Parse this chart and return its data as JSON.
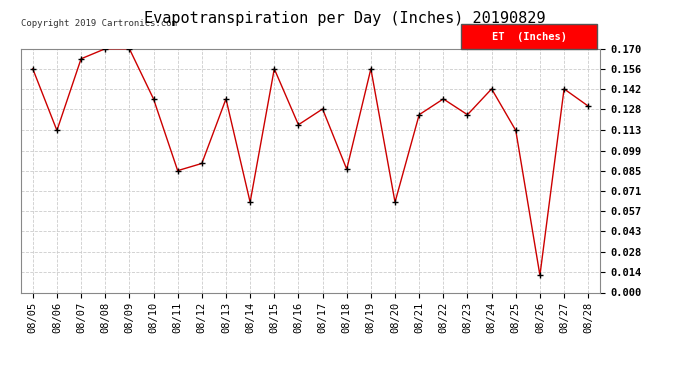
{
  "title": "Evapotranspiration per Day (Inches) 20190829",
  "copyright_text": "Copyright 2019 Cartronics.com",
  "legend_label": "ET  (Inches)",
  "legend_bg_color": "#ff0000",
  "legend_text_color": "#ffffff",
  "line_color": "#cc0000",
  "marker_color": "#000000",
  "bg_color": "#ffffff",
  "grid_color": "#cccccc",
  "dates": [
    "08/05",
    "08/06",
    "08/07",
    "08/08",
    "08/09",
    "08/10",
    "08/11",
    "08/12",
    "08/13",
    "08/14",
    "08/15",
    "08/16",
    "08/17",
    "08/18",
    "08/19",
    "08/20",
    "08/21",
    "08/22",
    "08/23",
    "08/24",
    "08/25",
    "08/26",
    "08/27",
    "08/28"
  ],
  "values": [
    0.156,
    0.113,
    0.163,
    0.17,
    0.17,
    0.135,
    0.085,
    0.09,
    0.135,
    0.063,
    0.156,
    0.117,
    0.128,
    0.086,
    0.156,
    0.063,
    0.124,
    0.135,
    0.124,
    0.142,
    0.113,
    0.012,
    0.142,
    0.13
  ],
  "ylim": [
    0.0,
    0.17
  ],
  "yticks": [
    0.0,
    0.014,
    0.028,
    0.043,
    0.057,
    0.071,
    0.085,
    0.099,
    0.113,
    0.128,
    0.142,
    0.156,
    0.17
  ],
  "title_fontsize": 11,
  "tick_fontsize": 7.5,
  "copyright_fontsize": 6.5
}
